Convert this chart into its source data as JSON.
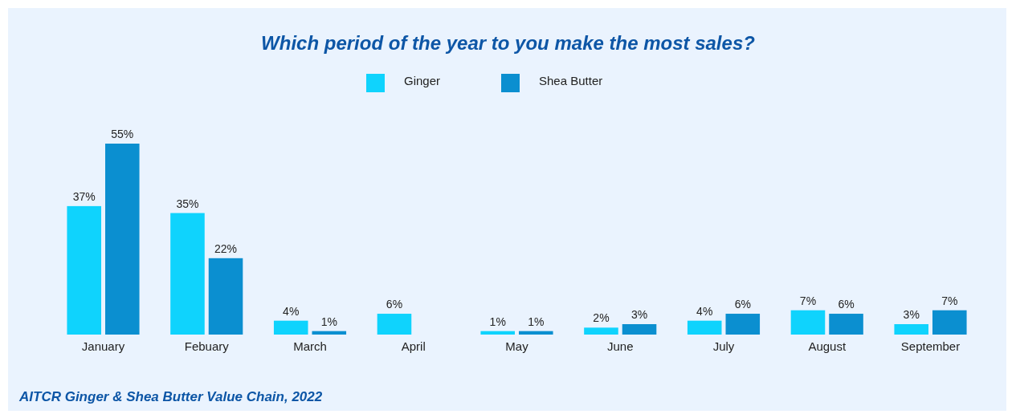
{
  "chart_data": {
    "type": "bar",
    "title": "Which period of the year to you make the most sales?",
    "categories": [
      "January",
      "Febuary",
      "March",
      "April",
      "May",
      "June",
      "July",
      "August",
      "September"
    ],
    "series": [
      {
        "name": "Ginger",
        "color": "#0fd3fd",
        "values": [
          37,
          35,
          4,
          6,
          1,
          2,
          4,
          7,
          3
        ],
        "value_labels": [
          "37%",
          "35%",
          "4%",
          "6%",
          "1%",
          "2%",
          "4%",
          "7%",
          "3%"
        ]
      },
      {
        "name": "Shea Butter",
        "color": "#0b8fd0",
        "values": [
          55,
          22,
          1,
          null,
          1,
          3,
          6,
          6,
          7
        ],
        "value_labels": [
          "55%",
          "22%",
          "1%",
          null,
          "1%",
          "3%",
          "6%",
          "6%",
          "7%"
        ]
      }
    ],
    "legend": "top",
    "grid": false,
    "annotations": [
      "AITCR Ginger & Shea Butter Value Chain, 2022"
    ]
  }
}
